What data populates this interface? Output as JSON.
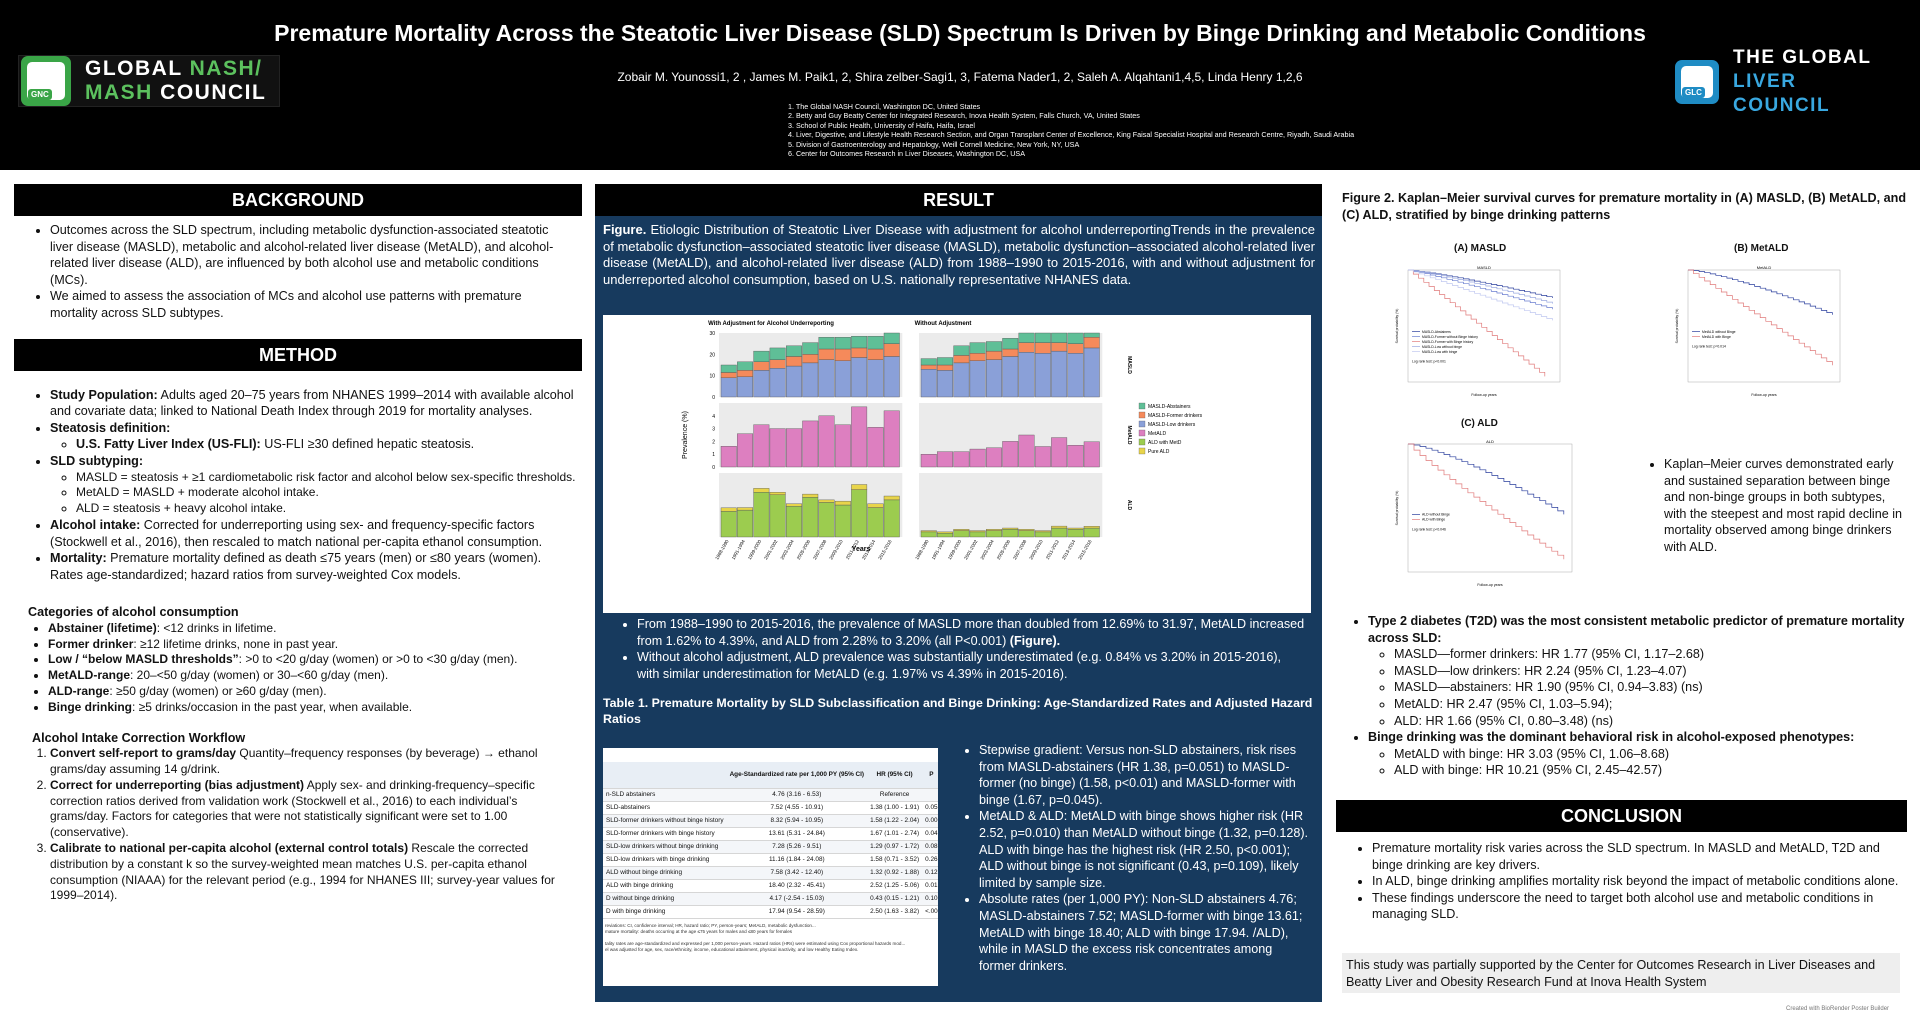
{
  "header": {
    "title": "Premature Mortality Across the Steatotic Liver Disease (SLD) Spectrum Is Driven by Binge Drinking and Metabolic Conditions",
    "authors": "Zobair M. Younossi1, 2 , James M. Paik1, 2, Shira zelber-Sagi1, 3, Fatema Nader1, 2, Saleh A. Alqahtani1,4,5, Linda Henry 1,2,6",
    "affiliations": [
      "1.  The Global NASH Council, Washington DC, United States",
      "2.  Betty and Guy Beatty Center for Integrated Research, Inova Health System, Falls Church, VA, United States",
      "3.  School of Public Health, University of Haifa, Haifa, Israel",
      "4.  Liver, Digestive, and Lifestyle Health Research Section, and Organ Transplant Center of Excellence, King Faisal Specialist Hospital and Research Centre, Riyadh, Saudi Arabia",
      "5.  Division of Gastroenterology and Hepatology, Weill Cornell Medicine, New York, NY, USA",
      "6.  Center for Outcomes Research in Liver Diseases, Washington DC, USA"
    ],
    "logo_left": {
      "line1a": "GLOBAL ",
      "line1b": "NASH/",
      "line2a": "MASH ",
      "line2b": "COUNCIL",
      "badge": "GNC"
    },
    "logo_right": {
      "line1": "THE GLOBAL",
      "line2": "LIVER COUNCIL",
      "badge": "GLC"
    }
  },
  "background": {
    "heading": "BACKGROUND",
    "bullets": [
      "Outcomes across the SLD spectrum, including metabolic dysfunction-associated steatotic liver disease (MASLD), metabolic and alcohol-related liver disease (MetALD), and alcohol-related liver disease (ALD), are influenced by both alcohol use and metabolic conditions (MCs).",
      "We aimed to assess the association of MCs and alcohol use patterns with premature mortality across SLD subtypes."
    ]
  },
  "method": {
    "heading": "METHOD",
    "study_pop_label": "Study Population:",
    "study_pop_text": " Adults aged 20–75 years from NHANES 1999–2014 with available alcohol and covariate data; linked to National Death Index through 2019 for mortality analyses.",
    "steatosis_label": "Steatosis definition:",
    "usfli_label": "U.S. Fatty Liver Index (US-FLI):",
    "usfli_text": " US-FLI ≥30 defined hepatic steatosis.",
    "subtyping_label": "SLD subtyping:",
    "subtypes": [
      "MASLD = steatosis + ≥1 cardiometabolic risk factor and alcohol below sex-specific thresholds.",
      "MetALD = MASLD + moderate alcohol intake.",
      "ALD = steatosis + heavy alcohol intake."
    ],
    "alcohol_label": "Alcohol intake:",
    "alcohol_text": " Corrected for underreporting using sex- and frequency-specific factors (Stockwell et al., 2016), then rescaled to match national per-capita ethanol consumption.",
    "mortality_label": "Mortality:",
    "mortality_text": " Premature mortality defined as death ≤75 years (men) or ≤80 years (women). Rates age-standardized; hazard ratios from survey-weighted Cox models.",
    "categories_heading": "Categories of alcohol consumption",
    "categories": [
      {
        "label": "Abstainer (lifetime)",
        "text": ": <12 drinks in lifetime."
      },
      {
        "label": "Former drinker",
        "text": ": ≥12 lifetime drinks, none in past year."
      },
      {
        "label": "Low / “below MASLD thresholds”",
        "text": ": >0 to <20 g/day (women) or >0 to <30 g/day (men)."
      },
      {
        "label": "MetALD-range",
        "text": ": 20–<50 g/day (women) or 30–<60 g/day (men)."
      },
      {
        "label": "ALD-range",
        "text": ": ≥50 g/day (women) or ≥60 g/day (men)."
      },
      {
        "label": "Binge drinking",
        "text": ": ≥5 drinks/occasion  in the past year, when available."
      }
    ],
    "workflow_heading": "Alcohol Intake Correction Workflow",
    "workflow": [
      {
        "label": "Convert self-report to grams/day",
        "text": " Quantity–frequency responses (by beverage) → ethanol grams/day assuming 14 g/drink."
      },
      {
        "label": "Correct for underreporting (bias adjustment)",
        "text": " Apply sex- and drinking-frequency–specific correction ratios derived from validation work (Stockwell et al., 2016) to each individual’s grams/day. Factors for categories that were not statistically significant were set to 1.00 (conservative)."
      },
      {
        "label": "Calibrate to national per-capita alcohol (external control totals)",
        "text": " Rescale the corrected distribution by a constant k so the survey-weighted mean matches U.S. per-capita ethanol consumption (NIAAA) for the relevant period (e.g., 1994 for NHANES III; survey-year values for 1999–2014)."
      }
    ]
  },
  "result": {
    "heading": "RESULT",
    "figure_caption_label": "Figure.",
    "figure_caption": " Etiologic Distribution of Steatotic Liver Disease with adjustment for alcohol underreportingTrends in the prevalence of metabolic dysfunction–associated steatotic liver disease (MASLD), metabolic dysfunction–associated alcohol-related liver disease (MetALD), and alcohol-related liver disease (ALD) from 1988–1990 to 2015-2016, with and without adjustment for underreported alcohol consumption, based on U.S. nationally representative NHANES data.",
    "bullets": [
      {
        "text": "From 1988–1990 to 2015-2016, the prevalence of MASLD more than doubled from 12.69% to 31.97, MetALD increased from 1.62% to 4.39%, and ALD from 2.28% to 3.20% (all P<0.001) ",
        "bold": "(Figure)."
      },
      {
        "text": "Without alcohol adjustment, ALD prevalence was substantially underestimated (e.g. 0.84% vs 3.20% in 2015-2016), with similar underestimation for MetALD  (e.g. 1.97% vs 4.39% in 2015-2016).",
        "bold": ""
      }
    ],
    "table_title": "Table 1. Premature Mortality by SLD Subclassification and Binge Drinking: Age-Standardized Rates and Adjusted Hazard Ratios",
    "table": {
      "headers": [
        "",
        "Age-Standardized rate per 1,000 PY (95% CI)",
        "HR (95% CI)",
        "P"
      ],
      "rows": [
        [
          "n-SLD abstainers",
          "4.76 (3.16 - 6.53)",
          "Reference",
          ""
        ],
        [
          "SLD-abstainers",
          "7.52 (4.55 - 10.91)",
          "1.38 (1.00 - 1.91)",
          "0.05"
        ],
        [
          "SLD-former drinkers without binge history",
          "8.32 (5.94 - 10.95)",
          "1.58 (1.22 - 2.04)",
          "0.00"
        ],
        [
          "SLD-former drinkers with binge history",
          "13.61 (5.31 - 24.84)",
          "1.67 (1.01 - 2.74)",
          "0.04"
        ],
        [
          "SLD-low drinkers without binge drinking",
          "7.28 (5.26 - 9.51)",
          "1.29 (0.97 - 1.72)",
          "0.08"
        ],
        [
          "SLD-low drinkers with binge drinking",
          "11.16 (1.84 - 24.08)",
          "1.58 (0.71 - 3.52)",
          "0.26"
        ],
        [
          "ALD without binge drinking",
          "7.58 (3.42 - 12.40)",
          "1.32 (0.92 - 1.88)",
          "0.12"
        ],
        [
          "ALD with binge drinking",
          "18.40 (2.32 - 45.41)",
          "2.52 (1.25 - 5.06)",
          "0.01"
        ],
        [
          "D without binge drinking",
          "4.17 (-2.54 - 15.03)",
          "0.43 (0.15 - 1.21)",
          "0.10"
        ],
        [
          "D with binge drinking",
          "17.94 (9.54 - 28.59)",
          "2.50 (1.63 - 3.82)",
          "<.00"
        ]
      ],
      "footnote1": "reviations: CI, confidence interval; HR, hazard ratio; PY, person-years; MetALD, metabolic dysfunction...",
      "footnote2": "mature mortality: deaths occurring at the age ≤75 years for males and ≤80 years for females",
      "footnote3": "tality rates are age-standardized and expressed per 1,000 person-years. Hazard ratios (HRs) were estimated using Cox proportional hazards mod...",
      "footnote4": "el was adjusted for age, sex, race/ethnicity, income, educational attainment, physical inactivity, and low Healthy Eating Index."
    },
    "right_bullets": [
      "Stepwise gradient: Versus non-SLD abstainers, risk rises from MASLD-abstainers (HR 1.38, p=0.051) to MASLD-former (no binge) (1.58, p<0.01) and MASLD-former with binge (1.67, p=0.045).",
      "MetALD & ALD: MetALD with binge shows higher risk (HR 2.52, p=0.010) than MetALD without binge (1.32, p=0.128). ALD with binge has the highest risk (HR 2.50, p<0.001); ALD without binge is not significant (0.43, p=0.109), likely limited by sample size.",
      "Absolute rates (per 1,000 PY): Non-SLD abstainers 4.76; MASLD-abstainers 7.52; MASLD-former with binge 13.61; MetALD with binge 18.40; ALD with binge 17.94.  /ALD), while in MASLD the excess risk concentrates among former drinkers."
    ]
  },
  "chart_data": {
    "type": "bar",
    "subtype": "stacked-faceted",
    "panel_titles": [
      "With Adjustment for Alcohol Underreporting",
      "Without Adjustment"
    ],
    "facets": [
      "MASLD",
      "MetALD",
      "ALD"
    ],
    "xlabel": "Years",
    "ylabel": "Prevalence (%)",
    "categories": [
      "1988-1990",
      "1991-1994",
      "1999-2000",
      "2001-2002",
      "2003-2004",
      "2005-2006",
      "2007-2008",
      "2009-2010",
      "2011-2012",
      "2013-2014",
      "2015-2016"
    ],
    "legend": [
      "MASLD-Abstainers",
      "MASLD-Former drinkers",
      "MASLD-Low drinkers",
      "MetALD",
      "ALD with MetD",
      "Pure ALD"
    ],
    "colors": [
      "#5fbf97",
      "#f58a5b",
      "#8aa0d8",
      "#dd7fc0",
      "#9ccc4f",
      "#e8d44a"
    ],
    "masld_ylim": [
      0,
      30
    ],
    "masld_ticks": [
      0,
      10,
      20,
      30
    ],
    "metald_ylim": [
      0,
      5
    ],
    "metald_ticks": [
      0,
      1,
      2,
      3,
      4
    ],
    "ald_ylim": [
      0,
      5
    ],
    "masld_adj": {
      "low": [
        9.0,
        9.5,
        12.5,
        13.5,
        14.5,
        16.0,
        17.5,
        17.0,
        18.5,
        17.5,
        19.0
      ],
      "former": [
        2.5,
        3.0,
        4.0,
        4.0,
        4.5,
        4.0,
        5.0,
        5.5,
        4.5,
        5.0,
        6.0
      ],
      "abstainers": [
        3.5,
        4.0,
        5.0,
        5.5,
        5.0,
        5.5,
        5.5,
        5.5,
        5.5,
        6.0,
        7.0
      ]
    },
    "masld_noadj": {
      "low": [
        13.0,
        12.5,
        16.0,
        17.0,
        17.5,
        19.0,
        21.0,
        20.5,
        21.5,
        20.5,
        23.0
      ],
      "former": [
        2.0,
        2.5,
        3.5,
        3.5,
        4.0,
        3.5,
        4.5,
        5.0,
        4.0,
        4.5,
        5.0
      ],
      "abstainers": [
        3.0,
        3.5,
        4.5,
        5.0,
        4.5,
        5.0,
        5.0,
        5.0,
        5.0,
        5.5,
        6.0
      ]
    },
    "metald_adj": [
      1.62,
      2.6,
      3.3,
      3.0,
      3.0,
      3.6,
      4.0,
      3.3,
      4.7,
      3.1,
      4.39
    ],
    "metald_noadj": [
      1.0,
      1.2,
      1.2,
      1.4,
      1.5,
      2.0,
      2.5,
      1.6,
      2.3,
      1.7,
      1.97
    ],
    "ald_adj": {
      "with_metd": [
        2.0,
        2.1,
        3.5,
        3.3,
        2.4,
        3.1,
        2.7,
        2.5,
        3.7,
        2.3,
        2.9
      ],
      "pure": [
        0.28,
        0.2,
        0.3,
        0.2,
        0.2,
        0.25,
        0.2,
        0.3,
        0.4,
        0.3,
        0.3
      ]
    },
    "ald_noadj": {
      "with_metd": [
        0.4,
        0.3,
        0.5,
        0.4,
        0.5,
        0.6,
        0.5,
        0.4,
        0.7,
        0.6,
        0.7
      ],
      "pure": [
        0.1,
        0.1,
        0.1,
        0.1,
        0.1,
        0.1,
        0.1,
        0.1,
        0.15,
        0.1,
        0.14
      ]
    }
  },
  "figure2": {
    "title": "Figure 2. Kaplan–Meier survival curves for premature mortality in (A) MASLD, (B) MetALD, and (C) ALD, stratified by binge drinking patterns",
    "panel_a": "(A) MASLD",
    "panel_b": "(B) MetALD",
    "panel_c": "(C) ALD",
    "inner_a": "MASLD",
    "inner_b": "MetALD",
    "inner_c": "ALD",
    "km_summary": "Kaplan–Meier curves demonstrated early and sustained separation between binge and non-binge groups in both subtypes, with the steepest and most rapid decline in mortality observed among binge drinkers with ALD.",
    "t2d_label": "Type 2 diabetes (T2D) was the most consistent metabolic predictor of premature mortality across SLD:",
    "t2d_items": [
      "MASLD—former drinkers: HR 1.77 (95% CI, 1.17–2.68)",
      "MASLD—low drinkers: HR 2.24 (95% CI, 1.23–4.07)",
      " MASLD—abstainers: HR 1.90 (95% CI, 0.94–3.83) (ns)",
      " MetALD: HR 2.47 (95% CI, 1.03–5.94);",
      "ALD: HR 1.66 (95% CI, 0.80–3.48) (ns)"
    ],
    "binge_label": "Binge drinking was the dominant behavioral risk in alcohol-exposed phenotypes:",
    "binge_items": [
      "MetALD with binge: HR 3.03 (95% CI, 1.06–8.68)",
      "ALD with binge: HR 10.21 (95% CI, 2.45–42.57)"
    ],
    "km_legend_a": [
      "MASLD-Abstainers",
      "MASLD-Former without Binge history",
      "MASLD-Former with Binge history",
      "MASLD-Low without binge",
      "MASLD-Low with binge"
    ],
    "km_legend_b": [
      "MetALD without Binge",
      "MetALD with Binge"
    ],
    "km_legend_c": [
      "ALD without Binge",
      "ALD with Binge"
    ],
    "logrank_a": "Log rank test: p<0.001",
    "logrank_b": "Log rank test: p=0.014",
    "logrank_c": "Log rank test: p<0.046",
    "xaxis": "Follow-up years",
    "yaxis": "Survival probability (%)"
  },
  "conclusion": {
    "heading": "CONCLUSION",
    "bullets": [
      "Premature mortality risk varies across the SLD spectrum. In MASLD and MetALD, T2D and binge drinking are key drivers.",
      "In ALD, binge drinking amplifies mortality risk beyond the impact of metabolic conditions alone.",
      "These findings underscore the need to target both alcohol use and metabolic conditions in managing SLD."
    ],
    "funding": "This study was partially supported by the Center for Outcomes Research in Liver Diseases and Beatty Liver and Obesity Research Fund at Inova Health System"
  },
  "footer_credit": "Created with BioRender Poster Builder"
}
